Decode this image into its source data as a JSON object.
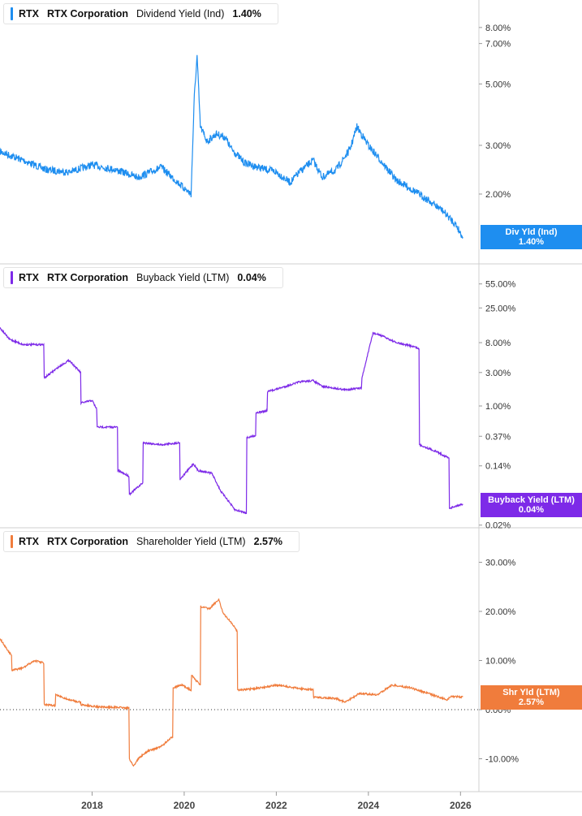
{
  "chart_data": [
    {
      "type": "line",
      "symbol": "RTX",
      "company": "RTX Corporation",
      "metric": "Dividend Yield (Ind)",
      "current_value": "1.40%",
      "badge": [
        "Div Yld (Ind)",
        "1.40%"
      ],
      "color": "#1e8ef0",
      "scale": "log",
      "y_ticks": [
        "8.00%",
        "7.00%",
        "5.00%",
        "3.00%",
        "2.00%"
      ],
      "y_tick_values": [
        8,
        7,
        5,
        3,
        2
      ],
      "series": [
        {
          "x": [
            2016.0,
            2016.5,
            2017.0,
            2017.5,
            2018.0,
            2018.5,
            2019.0,
            2019.5,
            2020.0,
            2020.15,
            2020.22,
            2020.28,
            2020.35,
            2020.5,
            2020.7,
            2020.9,
            2021.0,
            2021.3,
            2021.6,
            2022.0,
            2022.3,
            2022.5,
            2022.8,
            2023.0,
            2023.3,
            2023.6,
            2023.75,
            2024.0,
            2024.3,
            2024.6,
            2025.0,
            2025.3,
            2025.6,
            2025.9,
            2026.05
          ],
          "y": [
            2.85,
            2.65,
            2.45,
            2.4,
            2.55,
            2.45,
            2.3,
            2.5,
            2.1,
            2.0,
            4.5,
            6.3,
            3.5,
            3.1,
            3.3,
            3.2,
            2.95,
            2.6,
            2.5,
            2.4,
            2.2,
            2.4,
            2.65,
            2.3,
            2.45,
            2.9,
            3.5,
            3.0,
            2.6,
            2.25,
            2.05,
            1.9,
            1.75,
            1.55,
            1.4
          ]
        }
      ]
    },
    {
      "type": "line",
      "symbol": "RTX",
      "company": "RTX Corporation",
      "metric": "Buyback Yield (LTM)",
      "current_value": "0.04%",
      "badge": [
        "Buyback Yield (LTM)",
        "0.04%"
      ],
      "color": "#7d2ae8",
      "scale": "log",
      "y_ticks": [
        "55.00%",
        "25.00%",
        "8.00%",
        "3.00%",
        "1.00%",
        "0.37%",
        "0.14%",
        "0.02%"
      ],
      "y_tick_values": [
        55,
        25,
        8,
        3,
        1,
        0.37,
        0.14,
        0.02
      ],
      "series": [
        {
          "x": [
            2016.0,
            2016.2,
            2016.5,
            2016.95,
            2016.96,
            2017.25,
            2017.5,
            2017.75,
            2017.76,
            2018.0,
            2018.1,
            2018.11,
            2018.55,
            2018.56,
            2018.8,
            2018.81,
            2019.1,
            2019.11,
            2019.5,
            2019.9,
            2019.91,
            2020.2,
            2020.3,
            2020.6,
            2020.8,
            2020.9,
            2021.1,
            2021.35,
            2021.36,
            2021.55,
            2021.56,
            2021.8,
            2021.81,
            2022.2,
            2022.5,
            2022.8,
            2023.0,
            2023.5,
            2023.85,
            2023.86,
            2024.1,
            2024.3,
            2024.6,
            2025.0,
            2025.1,
            2025.11,
            2025.5,
            2025.75,
            2025.76,
            2026.05
          ],
          "y": [
            13.0,
            9.0,
            7.5,
            7.5,
            2.5,
            3.5,
            4.5,
            3.0,
            1.1,
            1.2,
            0.9,
            0.5,
            0.5,
            0.12,
            0.1,
            0.055,
            0.08,
            0.3,
            0.28,
            0.3,
            0.09,
            0.15,
            0.12,
            0.11,
            0.06,
            0.05,
            0.033,
            0.03,
            0.35,
            0.38,
            0.8,
            0.85,
            1.6,
            1.9,
            2.2,
            2.3,
            1.9,
            1.7,
            1.8,
            2.5,
            11.0,
            10.0,
            8.0,
            7.0,
            6.5,
            0.28,
            0.22,
            0.18,
            0.035,
            0.04
          ]
        }
      ]
    },
    {
      "type": "line",
      "symbol": "RTX",
      "company": "RTX Corporation",
      "metric": "Shareholder Yield (LTM)",
      "current_value": "2.57%",
      "badge": [
        "Shr Yld (LTM)",
        "2.57%"
      ],
      "color": "#f07c3c",
      "scale": "linear",
      "ylim": [
        -13,
        33
      ],
      "y_ticks": [
        "30.00%",
        "20.00%",
        "10.00%",
        "0.00%",
        "-10.00%"
      ],
      "y_tick_values": [
        30,
        20,
        10,
        0,
        -10
      ],
      "zero_line": true,
      "series": [
        {
          "x": [
            2016.0,
            2016.1,
            2016.25,
            2016.26,
            2016.5,
            2016.75,
            2016.95,
            2016.96,
            2017.2,
            2017.21,
            2017.5,
            2017.75,
            2017.76,
            2018.2,
            2018.5,
            2018.8,
            2018.81,
            2018.9,
            2019.0,
            2019.2,
            2019.5,
            2019.75,
            2019.76,
            2019.95,
            2020.15,
            2020.16,
            2020.35,
            2020.36,
            2020.55,
            2020.75,
            2020.85,
            2021.0,
            2021.15,
            2021.16,
            2021.5,
            2022.0,
            2022.5,
            2022.8,
            2022.81,
            2023.3,
            2023.5,
            2023.8,
            2024.2,
            2024.5,
            2024.9,
            2025.4,
            2025.7,
            2025.8,
            2026.05
          ],
          "y": [
            14.5,
            13.0,
            11.0,
            8.0,
            8.5,
            10.0,
            9.5,
            1.0,
            0.8,
            3.0,
            2.0,
            1.5,
            1.0,
            0.5,
            0.5,
            0.3,
            -10.0,
            -11.5,
            -10.0,
            -8.5,
            -7.5,
            -5.5,
            4.5,
            5.0,
            4.0,
            7.0,
            5.0,
            21.0,
            20.5,
            22.5,
            19.5,
            18.0,
            16.0,
            4.0,
            4.2,
            5.0,
            4.3,
            4.0,
            2.5,
            2.3,
            1.5,
            3.3,
            3.0,
            5.0,
            4.5,
            3.0,
            2.0,
            2.7,
            2.57
          ]
        }
      ]
    }
  ],
  "x_axis": {
    "ticks": [
      "2018",
      "2020",
      "2022",
      "2024",
      "2026"
    ],
    "tick_values": [
      2018,
      2020,
      2022,
      2024,
      2026
    ],
    "range": [
      2016.0,
      2026.4
    ]
  }
}
